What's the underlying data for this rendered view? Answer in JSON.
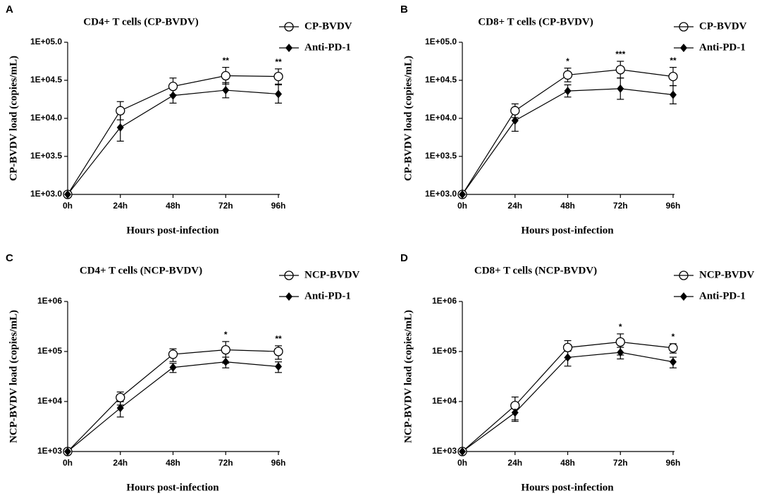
{
  "chart_data": [
    {
      "type": "line",
      "panel_label": "A",
      "title": "CD4+ T cells (CP-BVDV)",
      "xlabel": "Hours post-infection",
      "ylabel": "CP-BVDV load (copies/mL)",
      "categories": [
        "0h",
        "24h",
        "48h",
        "72h",
        "96h"
      ],
      "ylim": [
        3,
        5
      ],
      "yticks": [
        {
          "value": 3,
          "label": "1E+03.0"
        },
        {
          "value": 3.5,
          "label": "1E+03.5"
        },
        {
          "value": 4,
          "label": "1E+04.0"
        },
        {
          "value": 4.5,
          "label": "1E+04.5"
        },
        {
          "value": 5,
          "label": "1E+05.0"
        }
      ],
      "series": [
        {
          "name": "CP-BVDV",
          "color": "#000000",
          "marker": "circle",
          "values": [
            3.0,
            4.1,
            4.42,
            4.56,
            4.55
          ],
          "errors": [
            0,
            0.12,
            0.11,
            0.11,
            0.1
          ]
        },
        {
          "name": "Anti-PD-1",
          "color": "#000000",
          "marker": "diamond",
          "values": [
            3.0,
            3.88,
            4.3,
            4.37,
            4.32
          ],
          "errors": [
            0,
            0.18,
            0.1,
            0.1,
            0.12
          ]
        }
      ],
      "annotations": [
        {
          "category": "72h",
          "text": "**"
        },
        {
          "category": "96h",
          "text": "**"
        }
      ]
    },
    {
      "type": "line",
      "panel_label": "B",
      "title": "CD8+ T cells (CP-BVDV)",
      "xlabel": "Hours post-infection",
      "ylabel": "CP-BVDV load (copies/mL)",
      "categories": [
        "0h",
        "24h",
        "48h",
        "72h",
        "96h"
      ],
      "ylim": [
        3,
        5
      ],
      "yticks": [
        {
          "value": 3,
          "label": "1E+03.0"
        },
        {
          "value": 3.5,
          "label": "1E+03.5"
        },
        {
          "value": 4,
          "label": "1E+04.0"
        },
        {
          "value": 4.5,
          "label": "1E+04.5"
        },
        {
          "value": 5,
          "label": "1E+05.0"
        }
      ],
      "series": [
        {
          "name": "CP-BVDV",
          "color": "#000000",
          "marker": "circle",
          "values": [
            3.0,
            4.1,
            4.57,
            4.64,
            4.55
          ],
          "errors": [
            0,
            0.09,
            0.09,
            0.11,
            0.12
          ]
        },
        {
          "name": "Anti-PD-1",
          "color": "#000000",
          "marker": "diamond",
          "values": [
            3.0,
            3.97,
            4.36,
            4.39,
            4.31
          ],
          "errors": [
            0,
            0.14,
            0.08,
            0.14,
            0.12
          ]
        }
      ],
      "annotations": [
        {
          "category": "48h",
          "text": "*"
        },
        {
          "category": "72h",
          "text": "***"
        },
        {
          "category": "96h",
          "text": "**"
        }
      ]
    },
    {
      "type": "line",
      "panel_label": "C",
      "title": "CD4+ T cells (NCP-BVDV)",
      "xlabel": "Hours post-infection",
      "ylabel": "NCP-BVDV load (copies/mL)",
      "categories": [
        "0h",
        "24h",
        "48h",
        "72h",
        "96h"
      ],
      "log_scale": true,
      "ylim": [
        1000,
        1000000
      ],
      "yticks": [
        {
          "value": 1000,
          "label": "1E+03"
        },
        {
          "value": 10000,
          "label": "1E+04"
        },
        {
          "value": 100000,
          "label": "1E+05"
        },
        {
          "value": 1000000,
          "label": "1E+06"
        }
      ],
      "series": [
        {
          "name": "NCP-BVDV",
          "color": "#000000",
          "marker": "circle",
          "values": [
            1000,
            12000,
            88000,
            108000,
            100000
          ],
          "errors": [
            0,
            3500,
            25000,
            50000,
            30000
          ]
        },
        {
          "name": "Anti-PD-1",
          "color": "#000000",
          "marker": "diamond",
          "values": [
            1000,
            7400,
            48000,
            62000,
            50000
          ],
          "errors": [
            0,
            2500,
            10000,
            15000,
            12000
          ]
        }
      ],
      "annotations": [
        {
          "category": "72h",
          "text": "*"
        },
        {
          "category": "96h",
          "text": "**"
        }
      ]
    },
    {
      "type": "line",
      "panel_label": "D",
      "title": "CD8+ T cells (NCP-BVDV)",
      "xlabel": "Hours post-infection",
      "ylabel": "NCP-BVDV load (copies/mL)",
      "categories": [
        "0h",
        "24h",
        "48h",
        "72h",
        "96h"
      ],
      "log_scale": true,
      "ylim": [
        1000,
        1000000
      ],
      "yticks": [
        {
          "value": 1000,
          "label": "1E+03"
        },
        {
          "value": 10000,
          "label": "1E+04"
        },
        {
          "value": 100000,
          "label": "1E+05"
        },
        {
          "value": 1000000,
          "label": "1E+06"
        }
      ],
      "series": [
        {
          "name": "NCP-BVDV",
          "color": "#000000",
          "marker": "circle",
          "values": [
            1000,
            8300,
            120000,
            155000,
            118000
          ],
          "errors": [
            0,
            4000,
            45000,
            70000,
            25000
          ]
        },
        {
          "name": "Anti-PD-1",
          "color": "#000000",
          "marker": "diamond",
          "values": [
            1000,
            6000,
            76000,
            96000,
            62000
          ],
          "errors": [
            0,
            2000,
            25000,
            25000,
            15000
          ]
        }
      ],
      "annotations": [
        {
          "category": "72h",
          "text": "*"
        },
        {
          "category": "96h",
          "text": "*"
        }
      ]
    }
  ]
}
